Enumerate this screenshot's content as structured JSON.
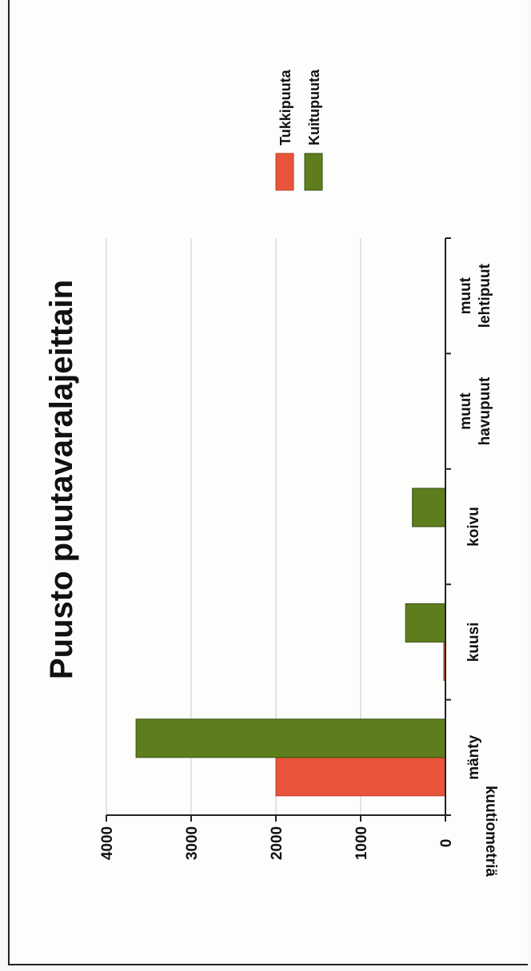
{
  "chart_data": {
    "type": "bar",
    "title": "Puusto puutavaralajeittain",
    "ylabel": "kuutiometriä",
    "xlabel": "",
    "categories": [
      [
        "mänty"
      ],
      [
        "kuusi"
      ],
      [
        "koivu"
      ],
      [
        "muut",
        "havupuut"
      ],
      [
        "muut",
        "lehtipuut"
      ]
    ],
    "series": [
      {
        "name": "Tukkipuuta",
        "color": "#e8553a",
        "values": [
          2000,
          20,
          0,
          0,
          0
        ]
      },
      {
        "name": "Kuitupuuta",
        "color": "#5e7e1e",
        "values": [
          3650,
          470,
          390,
          0,
          0
        ]
      }
    ],
    "ylim": [
      0,
      4000
    ],
    "yticks": [
      0,
      1000,
      2000,
      3000,
      4000
    ],
    "grid": true,
    "legend": "top-right",
    "orientation": "rotated-90"
  }
}
